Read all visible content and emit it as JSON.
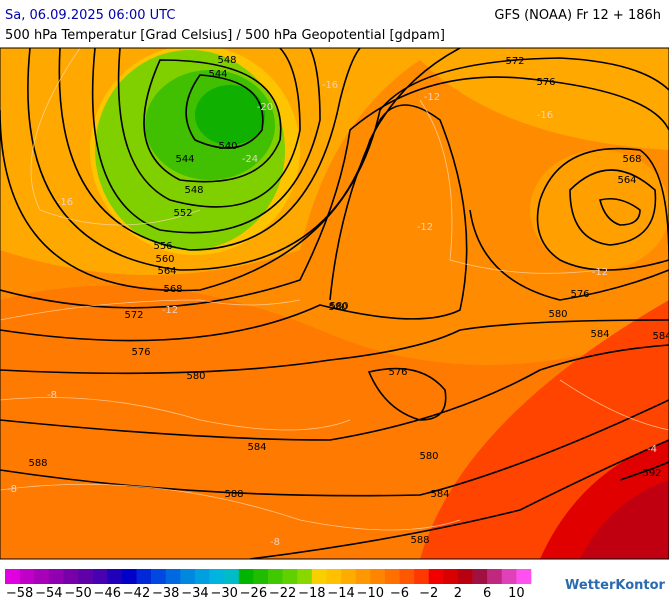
{
  "header": {
    "date": "Sa, 06.09.2025 06:00 UTC",
    "model": "GFS (NOAA) Fr 12 + 186h",
    "subtitle": "500 hPa Temperatur [Grad Celsius] / 500 hPa Geopotential [gdpam]"
  },
  "contour_labels": [
    548,
    544,
    540,
    544,
    548,
    552,
    556,
    560,
    564,
    568,
    572,
    576,
    580,
    584,
    588,
    580,
    576,
    580,
    584,
    588,
    584,
    588,
    572,
    576,
    568,
    564,
    576,
    580,
    584,
    592,
    580
  ],
  "temperature_labels": [
    "-24",
    "-20",
    "-16",
    "-16",
    "-12",
    "-12",
    "-12",
    "-8",
    "-8",
    "-8",
    "-4",
    "-16",
    "-12"
  ],
  "legend": {
    "colors": [
      "#e000e0",
      "#c000c8",
      "#a800b8",
      "#9000b0",
      "#7800a8",
      "#6000a8",
      "#4800b0",
      "#2000b8",
      "#0000c8",
      "#0028d8",
      "#0048e0",
      "#0068e0",
      "#0088e0",
      "#00a0e0",
      "#00b4e0",
      "#00bcc8",
      "#00b400",
      "#20bc00",
      "#40c800",
      "#60d000",
      "#88d800",
      "#f8d000",
      "#ffc000",
      "#ffac00",
      "#ff9800",
      "#ff8400",
      "#ff7000",
      "#ff5800",
      "#ff3800",
      "#f00000",
      "#d80000",
      "#b80010",
      "#a01040",
      "#c02880",
      "#e040b8",
      "#ff50f0"
    ],
    "range": [
      -60,
      12
    ],
    "ticks": [
      {
        "value": -58,
        "label": "−58"
      },
      {
        "value": -54,
        "label": "−54"
      },
      {
        "value": -50,
        "label": "−50"
      },
      {
        "value": -46,
        "label": "−46"
      },
      {
        "value": -42,
        "label": "−42"
      },
      {
        "value": -38,
        "label": "−38"
      },
      {
        "value": -34,
        "label": "−34"
      },
      {
        "value": -30,
        "label": "−30"
      },
      {
        "value": -26,
        "label": "−26"
      },
      {
        "value": -22,
        "label": "−22"
      },
      {
        "value": -18,
        "label": "−18"
      },
      {
        "value": -14,
        "label": "−14"
      },
      {
        "value": -10,
        "label": "−10"
      },
      {
        "value": -6,
        "label": "−6"
      },
      {
        "value": -2,
        "label": "−2"
      },
      2,
      6,
      10
    ]
  },
  "logo": "WetterKontor"
}
